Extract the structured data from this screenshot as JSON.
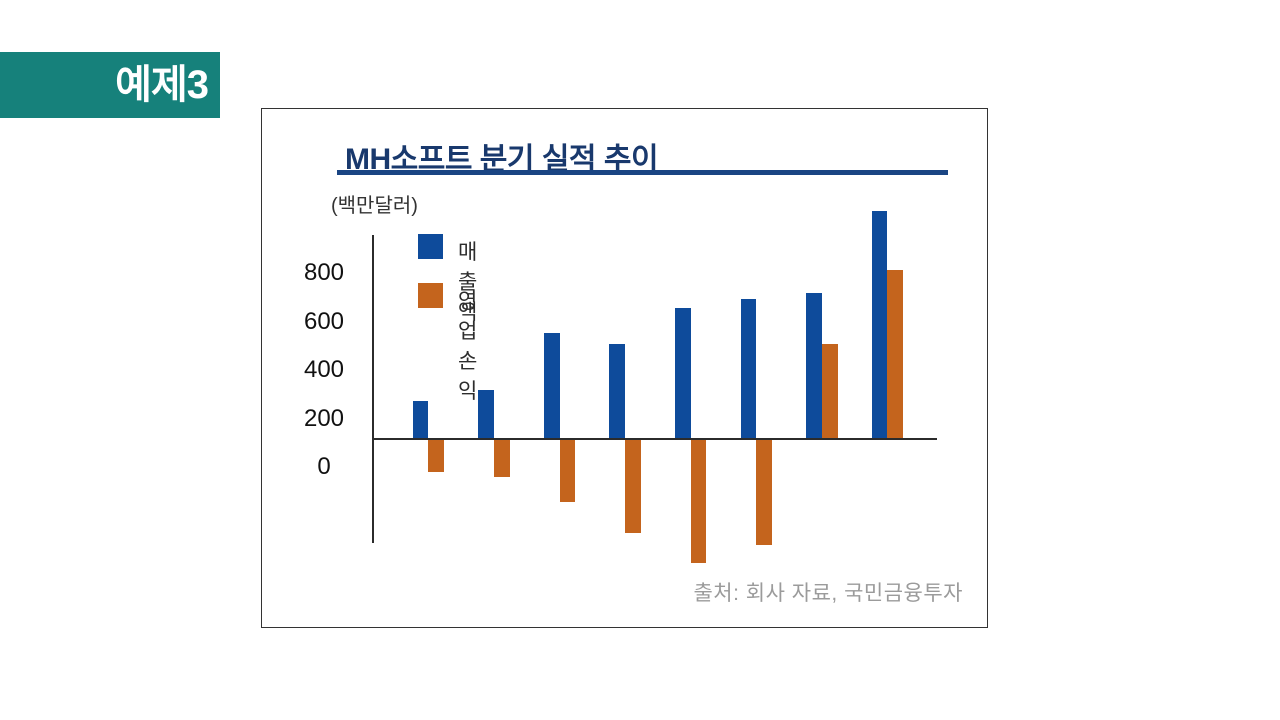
{
  "badge": {
    "label": "예제3",
    "bg_color": "#16817b",
    "text_color": "#ffffff"
  },
  "panel": {
    "border_color": "#333333"
  },
  "chart_data": {
    "type": "bar",
    "title": "MH소프트 분기 실적 추이",
    "title_color": "#19396d",
    "unit_label": "(백만달러)",
    "y_tick_labels": [
      "800",
      "600",
      "400",
      "200",
      "0"
    ],
    "y_tick_values": [
      800,
      600,
      400,
      200,
      0
    ],
    "x_tick_labels_visible": false,
    "grid": false,
    "legend_position": "inside-top-left",
    "series": [
      {
        "name": "매출액",
        "color": "#0e4b9b",
        "values": [
          155,
          200,
          435,
          390,
          540,
          575,
          600,
          940
        ]
      },
      {
        "name": "영업손익",
        "color": "#c4641d",
        "values": [
          -135,
          -155,
          -260,
          -385,
          -510,
          -435,
          390,
          695
        ]
      }
    ],
    "axis_color": "#2b2b2b",
    "source": "출처: 회사 자료, 국민금융투자",
    "source_color": "#9b9b9b"
  }
}
